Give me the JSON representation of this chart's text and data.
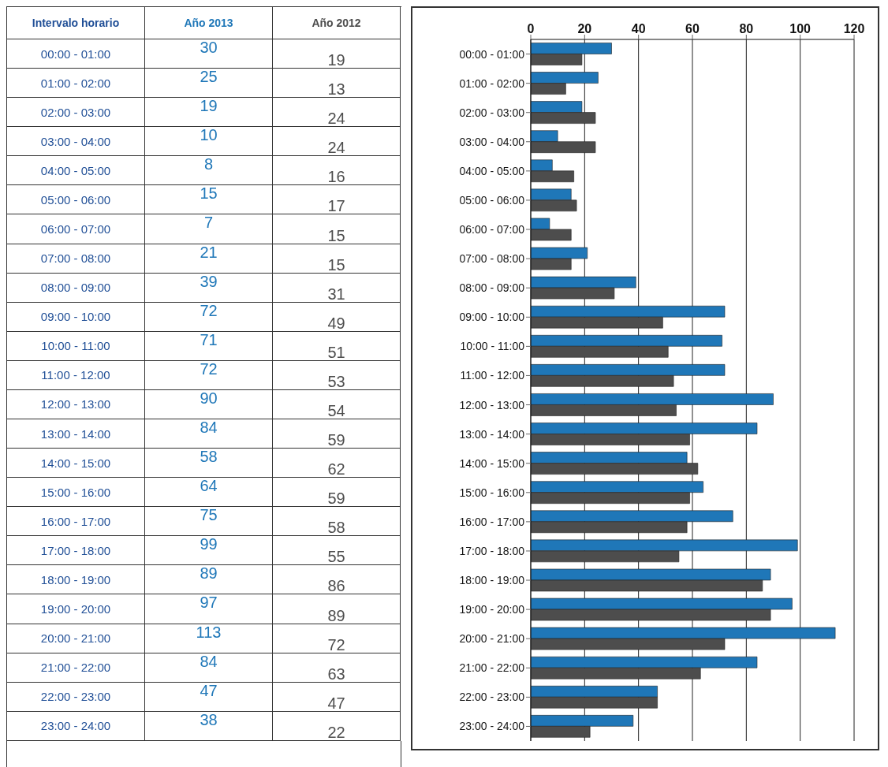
{
  "chart_data": {
    "type": "bar",
    "orientation": "horizontal",
    "annotations": [
      "Intervalo horario"
    ],
    "categories": [
      "00:00 - 01:00",
      "01:00 - 02:00",
      "02:00 - 03:00",
      "03:00 - 04:00",
      "04:00 - 05:00",
      "05:00 - 06:00",
      "06:00 - 07:00",
      "07:00 - 08:00",
      "08:00 - 09:00",
      "09:00 - 10:00",
      "10:00 - 11:00",
      "11:00 - 12:00",
      "12:00 - 13:00",
      "13:00 - 14:00",
      "14:00 - 15:00",
      "15:00 - 16:00",
      "16:00 - 17:00",
      "17:00 - 18:00",
      "18:00 - 19:00",
      "19:00 - 20:00",
      "20:00 - 21:00",
      "21:00 - 22:00",
      "22:00 - 23:00",
      "23:00 - 24:00"
    ],
    "series": [
      {
        "name": "Año 2013",
        "color": "#1f77b8",
        "values": [
          30,
          25,
          19,
          10,
          8,
          15,
          7,
          21,
          39,
          72,
          71,
          72,
          90,
          84,
          58,
          64,
          75,
          99,
          89,
          97,
          113,
          84,
          47,
          38
        ]
      },
      {
        "name": "Año 2012",
        "color": "#4d4d4d",
        "values": [
          19,
          13,
          24,
          24,
          16,
          17,
          15,
          15,
          31,
          49,
          51,
          53,
          54,
          59,
          62,
          59,
          58,
          55,
          86,
          89,
          72,
          63,
          47,
          22
        ]
      }
    ],
    "xlim": [
      0,
      120
    ],
    "xticks": [
      0,
      20,
      40,
      60,
      80,
      100,
      120
    ],
    "grid": "x",
    "data_labels": true
  }
}
